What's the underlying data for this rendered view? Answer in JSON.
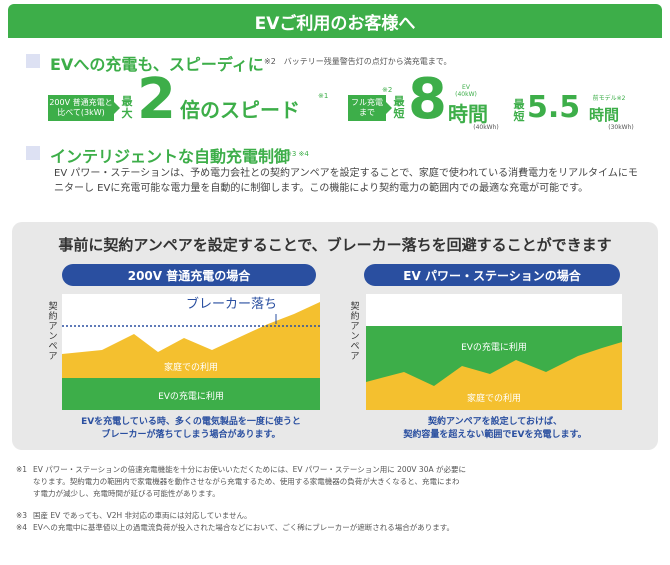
{
  "banner": {
    "title": "EVご利用のお客様へ"
  },
  "section1": {
    "heading": "EVへの充電も、スピーディに",
    "note": "※2　バッテリー残量警告灯の点灯から満充電まで。"
  },
  "speed": {
    "compare_box": "200V 普通充電と比べて(3kW)",
    "max_label": "最大",
    "multiplier": "2",
    "multiplier_text": "倍のスピード",
    "mark1": "※1",
    "full_charge_box": "フル充電まで",
    "mark2": "※2",
    "shortest_label": "最短",
    "hours1": "8",
    "hours_unit": "時間",
    "ev_kw": "EV (40kW)",
    "kwh1": "(40kWh)",
    "shortest_label2": "最短",
    "hours2": "5.5",
    "model_note": "前モデル※2",
    "kwh2": "(30kWh)"
  },
  "section2": {
    "heading": "インテリジェントな自動充電制御",
    "mark": "※3 ※4",
    "paragraph": "EV パワー・ステーションは、予め電力会社との契約アンペアを設定することで、家庭で使われている消費電力をリアルタイムにモニターし EVに充電可能な電力量を自動的に制御します。この機能により契約電力の範囲内での最適な充電が可能です。"
  },
  "panel": {
    "title": "事前に契約アンペアを設定することで、ブレーカー落ちを回避することができます",
    "left": {
      "pill": "200V 普通充電の場合",
      "ylabel": "契約アンペア",
      "breaker": "ブレーカー落ち",
      "home_label": "家庭での利用",
      "ev_label": "EVの充電に利用",
      "caption1": "EVを充電している時、多くの電気製品を一度に使うと",
      "caption2": "ブレーカーが落ちてしまう場合があります。"
    },
    "right": {
      "pill": "EV パワー・ステーションの場合",
      "ylabel": "契約アンペア",
      "ev_label": "EVの充電に利用",
      "home_label": "家庭での利用",
      "caption1": "契約アンペアを設定しておけば、",
      "caption2": "契約容量を超えない範囲でEVを充電します。"
    }
  },
  "footnotes": [
    {
      "num": "※1",
      "lines": [
        "EV パワー・ステーションの倍速充電機能を十分にお使いいただくためには、EV パワー・ステーション用に 200V 30A が必要に",
        "なります。契約電力の範囲内で家電機器を動作させながら充電するため、使用する家電機器の負荷が大きくなると、充電にまわ",
        "す電力が減少し、充電時間が延びる可能性があります。"
      ]
    },
    {
      "num": "※3",
      "lines": [
        "国産 EV であっても、V2H 非対応の車両には対応していません。"
      ]
    },
    {
      "num": "※4",
      "lines": [
        "EVへの充電中に基準値以上の過電流負荷が投入された場合などにおいて、ごく稀にブレーカーが遮断される場合があります。"
      ]
    }
  ],
  "colors": {
    "green": "#3dae49",
    "navy": "#2a4fa0",
    "yellow": "#f4c02f",
    "panel": "#e8e8e8"
  }
}
